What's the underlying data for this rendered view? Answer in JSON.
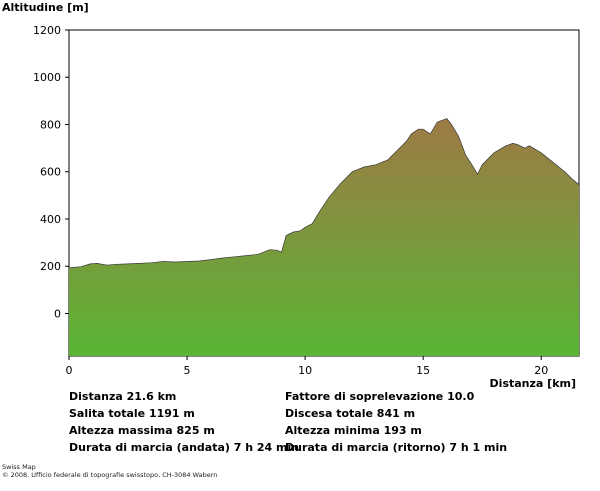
{
  "chart_data": {
    "type": "area",
    "ylabel": "Altitudine [m]",
    "xlabel": "Distanza [km]",
    "xlim": [
      0,
      21.6
    ],
    "ylim": [
      -180,
      1200
    ],
    "x_ticks": [
      "0",
      "5",
      "10",
      "15",
      "20"
    ],
    "y_ticks": [
      "1200",
      "1000",
      "800",
      "600",
      "400",
      "200",
      "0"
    ],
    "grid": false,
    "gradient_colors": {
      "top": "#9e7a45",
      "bottom": "#5ab535"
    },
    "x": [
      0,
      0.5,
      0.9,
      1.2,
      1.6,
      2.0,
      3.0,
      3.5,
      4.0,
      4.5,
      5.0,
      5.5,
      6.0,
      6.5,
      7.0,
      7.5,
      8.0,
      8.5,
      8.8,
      9.0,
      9.2,
      9.5,
      9.8,
      10.0,
      10.3,
      10.6,
      11.0,
      11.5,
      12.0,
      12.5,
      13.0,
      13.5,
      14.0,
      14.3,
      14.5,
      14.8,
      15.0,
      15.3,
      15.6,
      16.0,
      16.2,
      16.5,
      16.8,
      17.0,
      17.3,
      17.5,
      18.0,
      18.5,
      18.8,
      19.0,
      19.3,
      19.5,
      20.0,
      20.5,
      21.0,
      21.3,
      21.6
    ],
    "y": [
      193,
      198,
      210,
      212,
      205,
      208,
      212,
      215,
      220,
      218,
      220,
      222,
      228,
      235,
      240,
      245,
      250,
      270,
      268,
      260,
      330,
      345,
      350,
      365,
      380,
      430,
      490,
      550,
      600,
      620,
      630,
      650,
      700,
      730,
      760,
      780,
      780,
      760,
      810,
      825,
      800,
      750,
      670,
      640,
      590,
      630,
      680,
      710,
      720,
      715,
      700,
      710,
      680,
      640,
      600,
      570,
      545
    ],
    "series": [],
    "stats": {
      "distanza": "Distanza 21.6 km",
      "salita": "Salita totale  1191 m",
      "altezza_max": "Altezza massima  825 m",
      "durata_andata": "Durata di marcia (andata)  7 h 24 min",
      "fattore": "Fattore di soprelevazione 10.0",
      "discesa": "Discesa totale  841 m",
      "altezza_min": "Altezza minima  193 m",
      "durata_ritorno": "Durata di marcia (ritorno)  7 h 1 min"
    }
  },
  "footer": {
    "line1": "Swiss Map",
    "line2": "© 2008. Ufficio federale di topografie swisstopo, CH-3084 Wabern"
  }
}
